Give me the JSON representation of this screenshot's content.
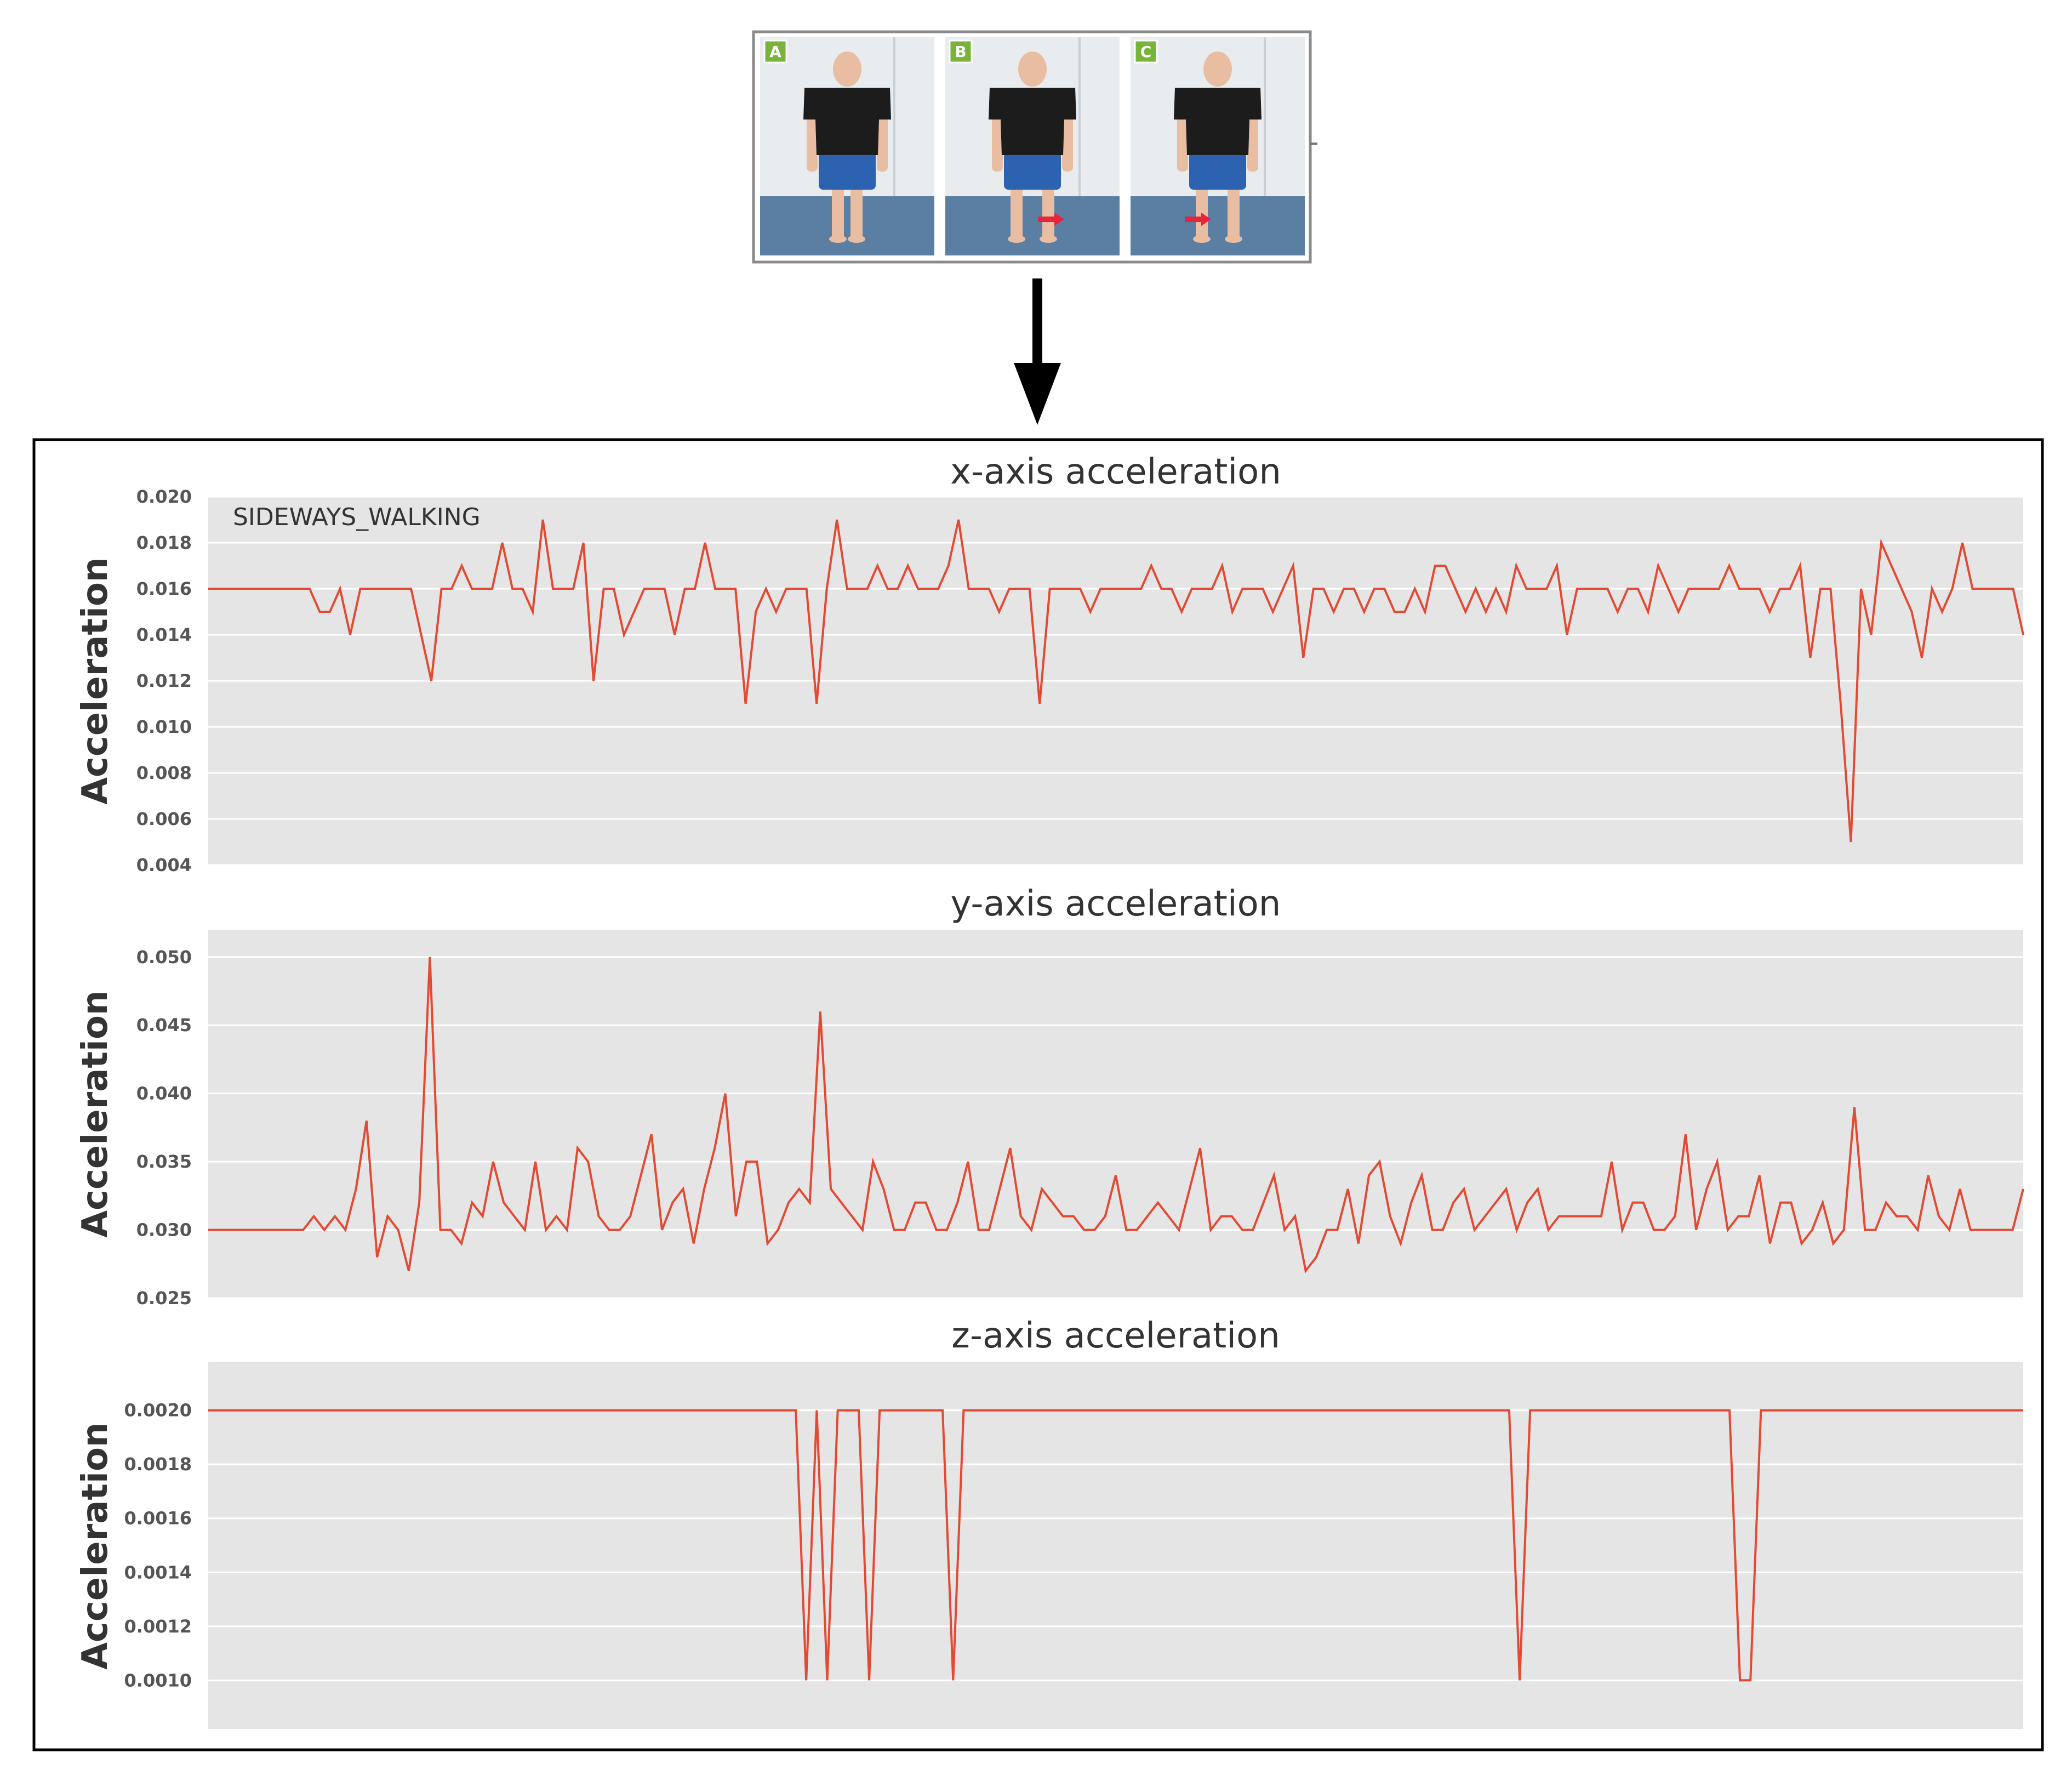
{
  "photos": {
    "panels": [
      {
        "label": "A",
        "arrow": false
      },
      {
        "label": "B",
        "arrow": true
      },
      {
        "label": "C",
        "arrow": true
      }
    ],
    "colors": {
      "wall": "#e8ecef",
      "floor": "#5a7fa3",
      "shirt": "#1c1c1c",
      "shorts": "#2d62b0",
      "skin": "#e9bda2",
      "label_bg": "#7ab33a",
      "arrow": "#e8233c"
    }
  },
  "colors": {
    "plot_bg": "#e5e5e5",
    "grid": "#ffffff",
    "line": "#e24a33",
    "text": "#333333",
    "tick_text": "#555555",
    "frame": "#000000"
  },
  "chart_data": [
    {
      "type": "line",
      "title": "x-axis acceleration",
      "ylabel": "Acceleration",
      "annotation": "SIDEWAYS_WALKING",
      "ylim": [
        0.004,
        0.02
      ],
      "yticks": [
        "0.004",
        "0.006",
        "0.008",
        "0.010",
        "0.012",
        "0.014",
        "0.016",
        "0.018",
        "0.020"
      ],
      "grid": true,
      "series": [
        {
          "values": [
            0.016,
            0.016,
            0.016,
            0.016,
            0.016,
            0.016,
            0.016,
            0.016,
            0.016,
            0.016,
            0.016,
            0.015,
            0.015,
            0.016,
            0.014,
            0.016,
            0.016,
            0.016,
            0.016,
            0.016,
            0.016,
            0.014,
            0.012,
            0.016,
            0.016,
            0.017,
            0.016,
            0.016,
            0.016,
            0.018,
            0.016,
            0.016,
            0.015,
            0.019,
            0.016,
            0.016,
            0.016,
            0.018,
            0.012,
            0.016,
            0.016,
            0.014,
            0.015,
            0.016,
            0.016,
            0.016,
            0.014,
            0.016,
            0.016,
            0.018,
            0.016,
            0.016,
            0.016,
            0.011,
            0.015,
            0.016,
            0.015,
            0.016,
            0.016,
            0.016,
            0.011,
            0.016,
            0.019,
            0.016,
            0.016,
            0.016,
            0.017,
            0.016,
            0.016,
            0.017,
            0.016,
            0.016,
            0.016,
            0.017,
            0.019,
            0.016,
            0.016,
            0.016,
            0.015,
            0.016,
            0.016,
            0.016,
            0.011,
            0.016,
            0.016,
            0.016,
            0.016,
            0.015,
            0.016,
            0.016,
            0.016,
            0.016,
            0.016,
            0.017,
            0.016,
            0.016,
            0.015,
            0.016,
            0.016,
            0.016,
            0.017,
            0.015,
            0.016,
            0.016,
            0.016,
            0.015,
            0.016,
            0.017,
            0.013,
            0.016,
            0.016,
            0.015,
            0.016,
            0.016,
            0.015,
            0.016,
            0.016,
            0.015,
            0.015,
            0.016,
            0.015,
            0.017,
            0.017,
            0.016,
            0.015,
            0.016,
            0.015,
            0.016,
            0.015,
            0.017,
            0.016,
            0.016,
            0.016,
            0.017,
            0.014,
            0.016,
            0.016,
            0.016,
            0.016,
            0.015,
            0.016,
            0.016,
            0.015,
            0.017,
            0.016,
            0.015,
            0.016,
            0.016,
            0.016,
            0.016,
            0.017,
            0.016,
            0.016,
            0.016,
            0.015,
            0.016,
            0.016,
            0.017,
            0.013,
            0.016,
            0.016,
            0.011,
            0.005,
            0.016,
            0.014,
            0.018,
            0.017,
            0.016,
            0.015,
            0.013,
            0.016,
            0.015,
            0.016,
            0.018,
            0.016,
            0.016,
            0.016,
            0.016,
            0.016,
            0.014
          ]
        }
      ]
    },
    {
      "type": "line",
      "title": "y-axis acceleration",
      "ylabel": "Acceleration",
      "ylim": [
        0.025,
        0.052
      ],
      "yticks": [
        "0.025",
        "0.030",
        "0.035",
        "0.040",
        "0.045",
        "0.050"
      ],
      "grid": true,
      "series": [
        {
          "values": [
            0.03,
            0.03,
            0.03,
            0.03,
            0.03,
            0.03,
            0.03,
            0.03,
            0.03,
            0.03,
            0.031,
            0.03,
            0.031,
            0.03,
            0.033,
            0.038,
            0.028,
            0.031,
            0.03,
            0.027,
            0.032,
            0.05,
            0.03,
            0.03,
            0.029,
            0.032,
            0.031,
            0.035,
            0.032,
            0.031,
            0.03,
            0.035,
            0.03,
            0.031,
            0.03,
            0.036,
            0.035,
            0.031,
            0.03,
            0.03,
            0.031,
            0.034,
            0.037,
            0.03,
            0.032,
            0.033,
            0.029,
            0.033,
            0.036,
            0.04,
            0.031,
            0.035,
            0.035,
            0.029,
            0.03,
            0.032,
            0.033,
            0.032,
            0.046,
            0.033,
            0.032,
            0.031,
            0.03,
            0.035,
            0.033,
            0.03,
            0.03,
            0.032,
            0.032,
            0.03,
            0.03,
            0.032,
            0.035,
            0.03,
            0.03,
            0.033,
            0.036,
            0.031,
            0.03,
            0.033,
            0.032,
            0.031,
            0.031,
            0.03,
            0.03,
            0.031,
            0.034,
            0.03,
            0.03,
            0.031,
            0.032,
            0.031,
            0.03,
            0.033,
            0.036,
            0.03,
            0.031,
            0.031,
            0.03,
            0.03,
            0.032,
            0.034,
            0.03,
            0.031,
            0.027,
            0.028,
            0.03,
            0.03,
            0.033,
            0.029,
            0.034,
            0.035,
            0.031,
            0.029,
            0.032,
            0.034,
            0.03,
            0.03,
            0.032,
            0.033,
            0.03,
            0.031,
            0.032,
            0.033,
            0.03,
            0.032,
            0.033,
            0.03,
            0.031,
            0.031,
            0.031,
            0.031,
            0.031,
            0.035,
            0.03,
            0.032,
            0.032,
            0.03,
            0.03,
            0.031,
            0.037,
            0.03,
            0.033,
            0.035,
            0.03,
            0.031,
            0.031,
            0.034,
            0.029,
            0.032,
            0.032,
            0.029,
            0.03,
            0.032,
            0.029,
            0.03,
            0.039,
            0.03,
            0.03,
            0.032,
            0.031,
            0.031,
            0.03,
            0.034,
            0.031,
            0.03,
            0.033,
            0.03,
            0.03,
            0.03,
            0.03,
            0.03,
            0.033
          ]
        }
      ]
    },
    {
      "type": "line",
      "title": "z-axis acceleration",
      "ylabel": "Acceleration",
      "ylim": [
        0.00082,
        0.00218
      ],
      "yticks": [
        "0.0010",
        "0.0012",
        "0.0014",
        "0.0016",
        "0.0018",
        "0.0020"
      ],
      "grid": true,
      "series": [
        {
          "values": [
            0.002,
            0.002,
            0.002,
            0.002,
            0.002,
            0.002,
            0.002,
            0.002,
            0.002,
            0.002,
            0.002,
            0.002,
            0.002,
            0.002,
            0.002,
            0.002,
            0.002,
            0.002,
            0.002,
            0.002,
            0.002,
            0.002,
            0.002,
            0.002,
            0.002,
            0.002,
            0.002,
            0.002,
            0.002,
            0.002,
            0.002,
            0.002,
            0.002,
            0.002,
            0.002,
            0.002,
            0.002,
            0.002,
            0.002,
            0.002,
            0.002,
            0.002,
            0.002,
            0.002,
            0.002,
            0.002,
            0.002,
            0.002,
            0.002,
            0.002,
            0.002,
            0.002,
            0.002,
            0.002,
            0.002,
            0.002,
            0.002,
            0.001,
            0.002,
            0.001,
            0.002,
            0.002,
            0.002,
            0.001,
            0.002,
            0.002,
            0.002,
            0.002,
            0.002,
            0.002,
            0.002,
            0.001,
            0.002,
            0.002,
            0.002,
            0.002,
            0.002,
            0.002,
            0.002,
            0.002,
            0.002,
            0.002,
            0.002,
            0.002,
            0.002,
            0.002,
            0.002,
            0.002,
            0.002,
            0.002,
            0.002,
            0.002,
            0.002,
            0.002,
            0.002,
            0.002,
            0.002,
            0.002,
            0.002,
            0.002,
            0.002,
            0.002,
            0.002,
            0.002,
            0.002,
            0.002,
            0.002,
            0.002,
            0.002,
            0.002,
            0.002,
            0.002,
            0.002,
            0.002,
            0.002,
            0.002,
            0.002,
            0.002,
            0.002,
            0.002,
            0.002,
            0.002,
            0.002,
            0.002,
            0.002,
            0.001,
            0.002,
            0.002,
            0.002,
            0.002,
            0.002,
            0.002,
            0.002,
            0.002,
            0.002,
            0.002,
            0.002,
            0.002,
            0.002,
            0.002,
            0.002,
            0.002,
            0.002,
            0.002,
            0.002,
            0.002,
            0.001,
            0.001,
            0.002,
            0.002,
            0.002,
            0.002,
            0.002,
            0.002,
            0.002,
            0.002,
            0.002,
            0.002,
            0.002,
            0.002,
            0.002,
            0.002,
            0.002,
            0.002,
            0.002,
            0.002,
            0.002,
            0.002,
            0.002,
            0.002,
            0.002,
            0.002,
            0.002,
            0.002
          ]
        }
      ]
    }
  ]
}
